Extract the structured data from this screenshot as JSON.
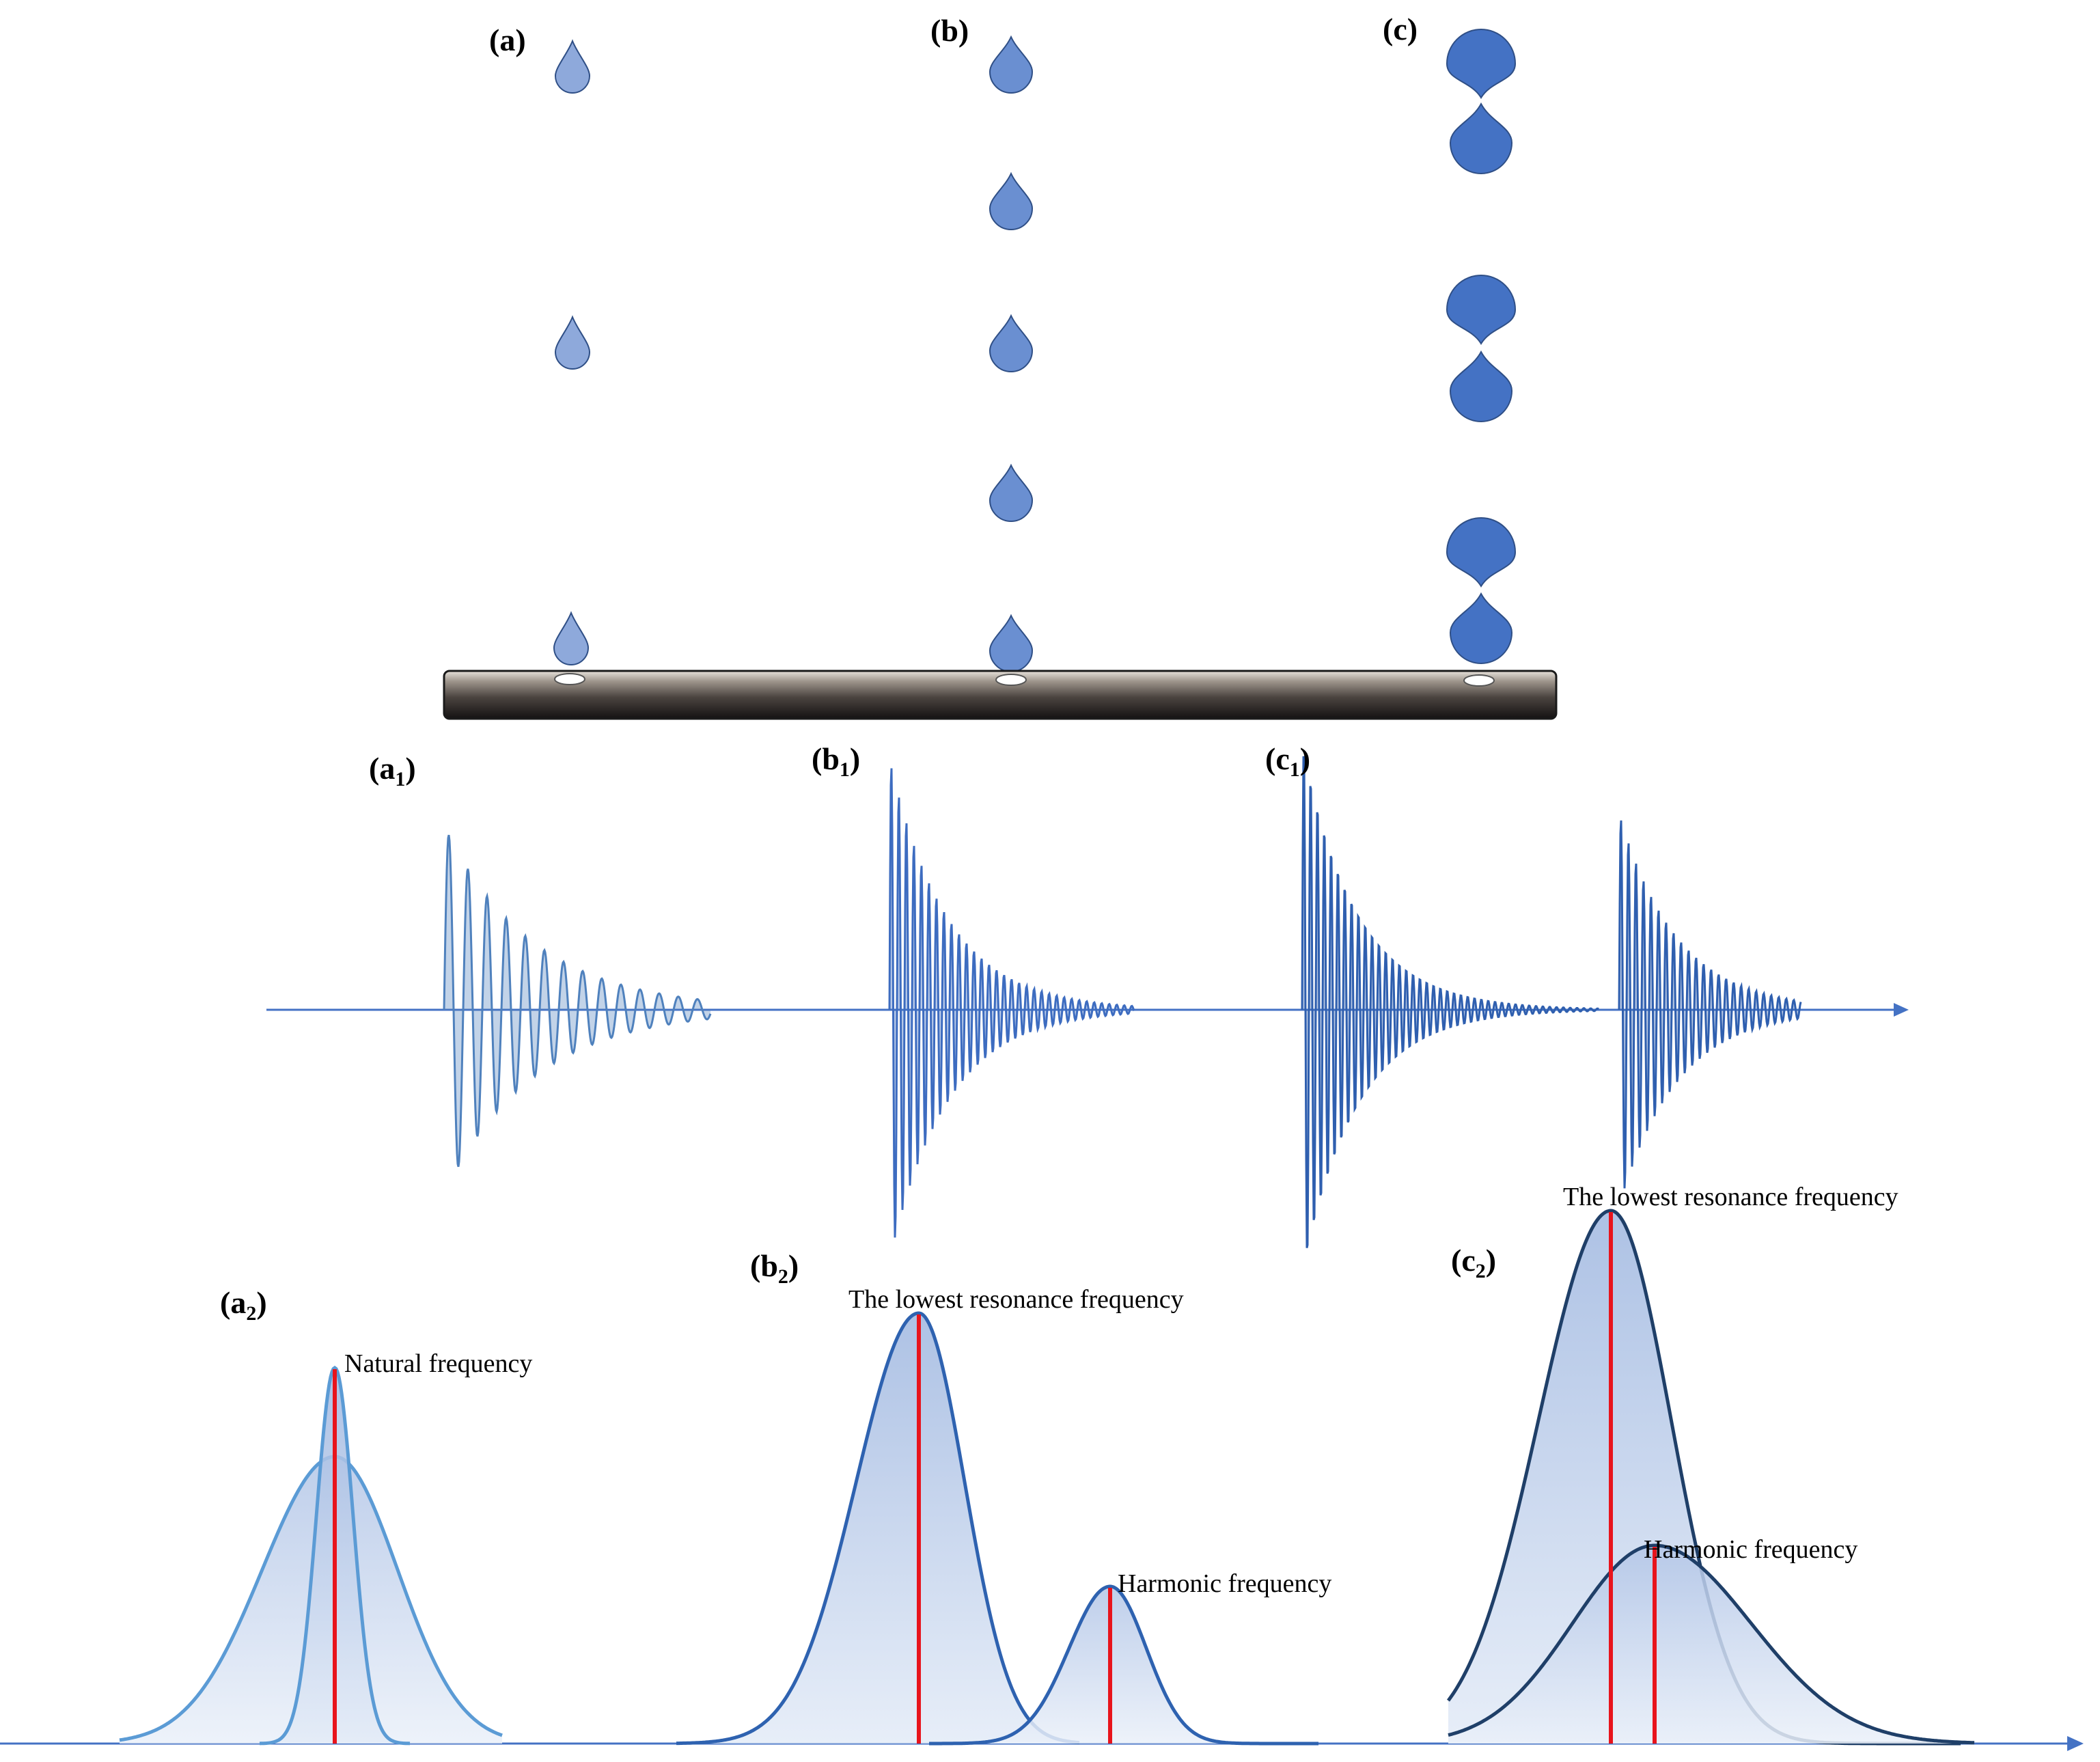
{
  "panels": {
    "drops": [
      {
        "id": "a",
        "label": "(a)"
      },
      {
        "id": "b",
        "label": "(b)"
      },
      {
        "id": "c",
        "label": "(c)"
      }
    ],
    "signals": [
      {
        "id": "a1",
        "base": "a",
        "sub": "1"
      },
      {
        "id": "b1",
        "base": "b",
        "sub": "1"
      },
      {
        "id": "c1",
        "base": "c",
        "sub": "1"
      }
    ],
    "spectra": [
      {
        "id": "a2",
        "base": "a",
        "sub": "2"
      },
      {
        "id": "b2",
        "base": "b",
        "sub": "2"
      },
      {
        "id": "c2",
        "base": "c",
        "sub": "2"
      }
    ]
  },
  "annotations": {
    "natural": "Natural frequency",
    "lowest_b": "The lowest resonance frequency",
    "harmonic_b": "Harmonic frequency",
    "lowest_c": "The lowest resonance frequency",
    "harmonic_c": "Harmonic frequency"
  },
  "colors": {
    "drop_a": "#8ea9db",
    "drop_b": "#6a8fd1",
    "drop_c": "#4472c4",
    "drop_outline": "#2f4f86",
    "signal_a": "#4f81bd",
    "signal_b": "#3d6cc0",
    "signal_c": "#2f5faf",
    "axis": "#4472c4",
    "marker": "#e8141c",
    "spec_a": "#5b9bd5",
    "spec_b": "#2e62b0",
    "spec_c": "#1f3f68"
  }
}
